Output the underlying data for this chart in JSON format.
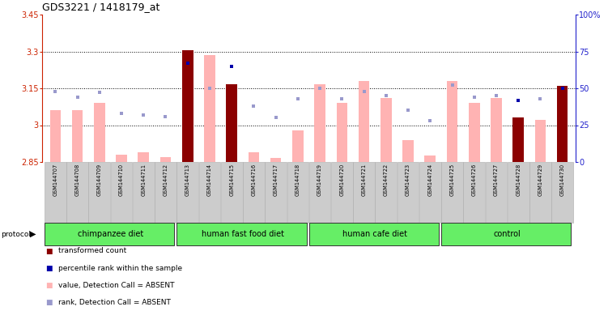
{
  "title": "GDS3221 / 1418179_at",
  "samples": [
    "GSM144707",
    "GSM144708",
    "GSM144709",
    "GSM144710",
    "GSM144711",
    "GSM144712",
    "GSM144713",
    "GSM144714",
    "GSM144715",
    "GSM144716",
    "GSM144717",
    "GSM144718",
    "GSM144719",
    "GSM144720",
    "GSM144721",
    "GSM144722",
    "GSM144723",
    "GSM144724",
    "GSM144725",
    "GSM144726",
    "GSM144727",
    "GSM144728",
    "GSM144729",
    "GSM144730"
  ],
  "values": [
    3.06,
    3.06,
    3.09,
    2.88,
    2.89,
    2.87,
    3.305,
    3.285,
    3.165,
    2.89,
    2.865,
    2.98,
    3.165,
    3.09,
    3.18,
    3.11,
    2.94,
    2.875,
    3.18,
    3.09,
    3.11,
    3.03,
    3.02,
    3.16
  ],
  "ranks": [
    48,
    44,
    47,
    33,
    32,
    31,
    67,
    50,
    65,
    38,
    30,
    43,
    50,
    43,
    48,
    45,
    35,
    28,
    52,
    44,
    45,
    42,
    43,
    50
  ],
  "is_dark_red": [
    false,
    false,
    false,
    false,
    false,
    false,
    true,
    false,
    true,
    false,
    false,
    false,
    false,
    false,
    false,
    false,
    false,
    false,
    false,
    false,
    false,
    true,
    false,
    true
  ],
  "groups": [
    {
      "label": "chimpanzee diet",
      "start": 0,
      "end": 6
    },
    {
      "label": "human fast food diet",
      "start": 6,
      "end": 12
    },
    {
      "label": "human cafe diet",
      "start": 12,
      "end": 18
    },
    {
      "label": "control",
      "start": 18,
      "end": 24
    }
  ],
  "ymin": 2.85,
  "ymax": 3.45,
  "yticks_left": [
    2.85,
    3.0,
    3.15,
    3.3,
    3.45
  ],
  "ytick_labels_left": [
    "2.85",
    "3",
    "3.15",
    "3.3",
    "3.45"
  ],
  "y2min": 0,
  "y2max": 100,
  "yticks_right": [
    0,
    25,
    50,
    75,
    100
  ],
  "ytick_labels_right": [
    "0",
    "25",
    "50",
    "75",
    "100%"
  ],
  "grid_dotted_at": [
    3.0,
    3.15,
    3.3
  ],
  "bar_color_light": "#ffb3b3",
  "bar_color_dark": "#8b0000",
  "dot_color_dark": "#0000aa",
  "dot_color_light": "#9999cc",
  "group_bg_color": "#66ee66",
  "tick_bg_color": "#cccccc",
  "ylabel_color": "#cc2200",
  "y2label_color": "#2222cc",
  "protocol_label": "protocol"
}
